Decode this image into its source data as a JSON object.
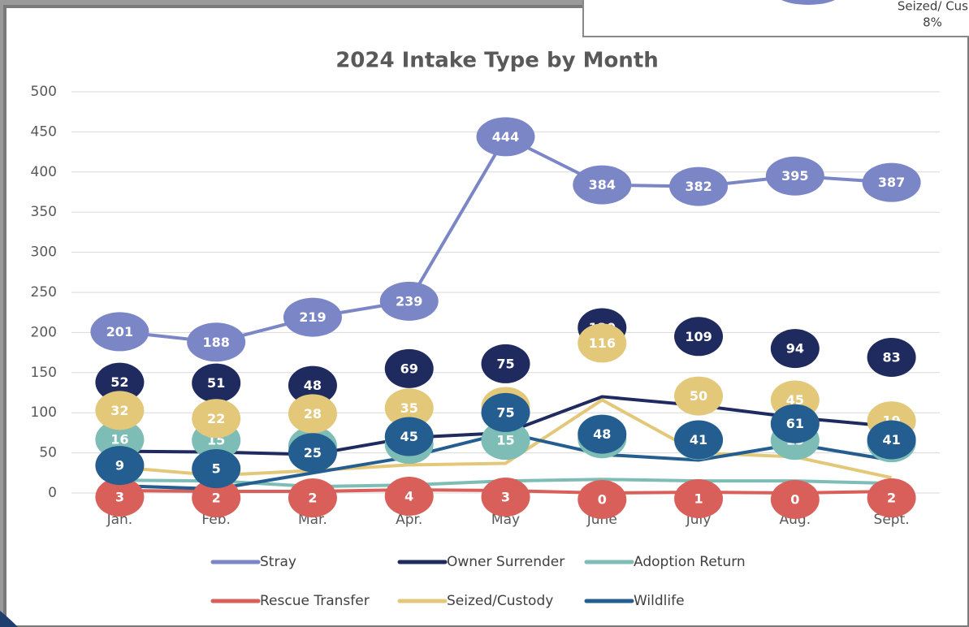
{
  "chart_data": {
    "type": "line",
    "title": "2024 Intake Type by Month",
    "categories": [
      "Jan.",
      "Feb.",
      "Mar.",
      "Apr.",
      "May",
      "June",
      "July",
      "Aug.",
      "Sept."
    ],
    "series": [
      {
        "name": "Stray",
        "color": "#7b86c6",
        "values": [
          201,
          188,
          219,
          239,
          444,
          384,
          382,
          395,
          387
        ]
      },
      {
        "name": "Owner Surrender",
        "color": "#1f2a5e",
        "values": [
          52,
          51,
          48,
          69,
          75,
          120,
          109,
          94,
          83
        ]
      },
      {
        "name": "Adoption Return",
        "color": "#7dbdb5",
        "values": [
          16,
          15,
          8,
          10,
          15,
          17,
          15,
          15,
          12
        ]
      },
      {
        "name": "Rescue Transfer",
        "color": "#d9605a",
        "values": [
          3,
          2,
          2,
          4,
          3,
          0,
          1,
          0,
          2
        ]
      },
      {
        "name": "Seized/Custody",
        "color": "#e3c87a",
        "values": [
          32,
          22,
          28,
          35,
          37,
          116,
          50,
          45,
          19
        ]
      },
      {
        "name": "Wildlife",
        "color": "#245d8f",
        "values": [
          9,
          5,
          25,
          45,
          75,
          48,
          41,
          61,
          41
        ]
      }
    ],
    "ylim": [
      0,
      500
    ],
    "yticks": [
      0,
      50,
      100,
      150,
      200,
      250,
      300,
      350,
      400,
      450,
      500
    ],
    "grid": true,
    "legend": "bottom"
  },
  "inset_fragment": {
    "label": "Seized/ Cus",
    "value_label": "8%"
  }
}
